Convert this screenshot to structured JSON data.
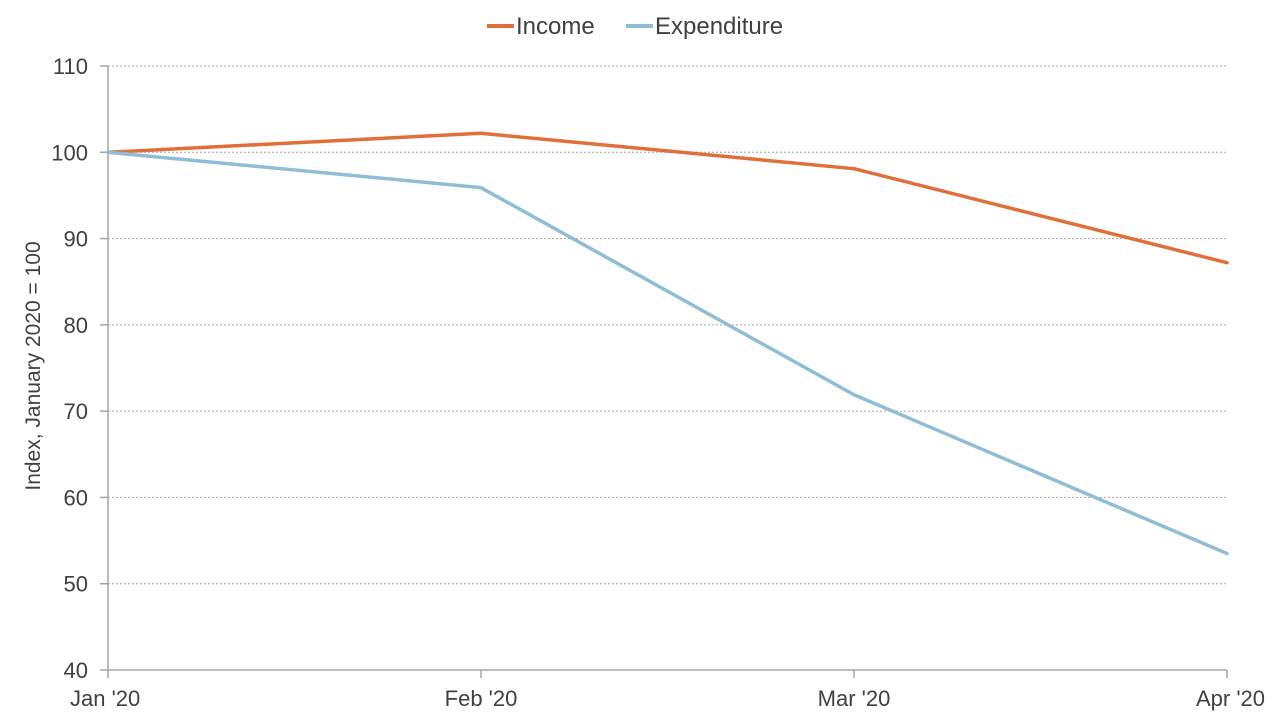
{
  "chart_data": {
    "type": "line",
    "title": "",
    "xlabel": "",
    "ylabel": "Index, January 2020 = 100",
    "categories": [
      "Jan '20",
      "Feb '20",
      "Mar '20",
      "Apr '20"
    ],
    "series": [
      {
        "name": "Income",
        "color": "#e0703a",
        "values": [
          100,
          102.2,
          98.1,
          87.2
        ]
      },
      {
        "name": "Expenditure",
        "color": "#8fbdd6",
        "values": [
          100,
          95.9,
          71.9,
          53.5
        ]
      }
    ],
    "ylim": [
      40,
      110
    ],
    "yticks": [
      "40",
      "50",
      "60",
      "70",
      "80",
      "90",
      "100",
      "110"
    ],
    "grid": true,
    "grid_style": "dotted",
    "legend_position": "top-center"
  }
}
